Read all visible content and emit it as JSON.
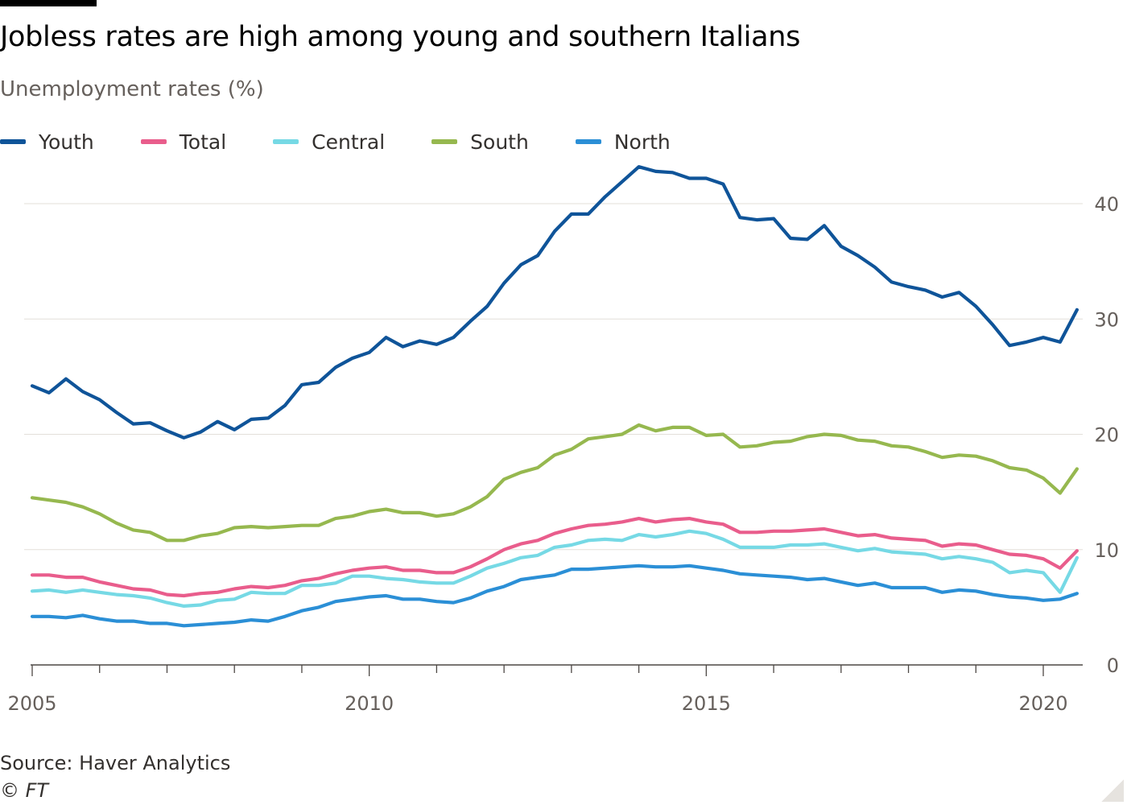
{
  "title": "Jobless rates are high among young and southern Italians",
  "subtitle": "Unemployment rates (%)",
  "source": "Source: Haver Analytics",
  "credit": "© FT",
  "colors": {
    "Youth": "#0f5499",
    "Total": "#e95d8c",
    "Central": "#76d9e5",
    "South": "#96b84f",
    "North": "#2b8fd6",
    "grid": "#e3dfd9",
    "axis": "#66605c"
  },
  "legend": [
    {
      "label": "Youth",
      "color": "#0f5499"
    },
    {
      "label": "Total",
      "color": "#e95d8c"
    },
    {
      "label": "Central",
      "color": "#76d9e5"
    },
    {
      "label": "South",
      "color": "#96b84f"
    },
    {
      "label": "North",
      "color": "#2b8fd6"
    }
  ],
  "chart_data": {
    "type": "line",
    "title": "Jobless rates are high among young and southern Italians",
    "subtitle": "Unemployment rates (%)",
    "ylabel": "",
    "xlabel": "",
    "x_start_year": 2005,
    "x_frequency": "quarterly",
    "x": [
      "2005 Q1",
      "2005 Q2",
      "2005 Q3",
      "2005 Q4",
      "2006 Q1",
      "2006 Q2",
      "2006 Q3",
      "2006 Q4",
      "2007 Q1",
      "2007 Q2",
      "2007 Q3",
      "2007 Q4",
      "2008 Q1",
      "2008 Q2",
      "2008 Q3",
      "2008 Q4",
      "2009 Q1",
      "2009 Q2",
      "2009 Q3",
      "2009 Q4",
      "2010 Q1",
      "2010 Q2",
      "2010 Q3",
      "2010 Q4",
      "2011 Q1",
      "2011 Q2",
      "2011 Q3",
      "2011 Q4",
      "2012 Q1",
      "2012 Q2",
      "2012 Q3",
      "2012 Q4",
      "2013 Q1",
      "2013 Q2",
      "2013 Q3",
      "2013 Q4",
      "2014 Q1",
      "2014 Q2",
      "2014 Q3",
      "2014 Q4",
      "2015 Q1",
      "2015 Q2",
      "2015 Q3",
      "2015 Q4",
      "2016 Q1",
      "2016 Q2",
      "2016 Q3",
      "2016 Q4",
      "2017 Q1",
      "2017 Q2",
      "2017 Q3",
      "2017 Q4",
      "2018 Q1",
      "2018 Q2",
      "2018 Q3",
      "2018 Q4",
      "2019 Q1",
      "2019 Q2",
      "2019 Q3",
      "2019 Q4",
      "2020 Q1",
      "2020 Q2",
      "2020 Q3"
    ],
    "xticks": [
      "2005",
      "2010",
      "2015",
      "2020"
    ],
    "yticks": [
      0,
      10,
      20,
      30,
      40
    ],
    "xlim": [
      "2005 Q1",
      "2020 Q4"
    ],
    "ylim": [
      0,
      44
    ],
    "y_axis_position": "right",
    "grid": true,
    "legend_position": "top-left",
    "series": [
      {
        "name": "Youth",
        "color": "#0f5499",
        "values": [
          24.2,
          23.6,
          24.8,
          23.7,
          23.0,
          21.9,
          20.9,
          21.0,
          20.3,
          19.7,
          20.2,
          21.1,
          20.4,
          21.3,
          21.4,
          22.5,
          24.3,
          24.5,
          25.8,
          26.6,
          27.1,
          28.4,
          27.6,
          28.1,
          27.8,
          28.4,
          29.8,
          31.1,
          33.1,
          34.7,
          35.5,
          37.6,
          39.1,
          39.1,
          40.6,
          41.9,
          43.2,
          42.8,
          42.7,
          42.2,
          42.2,
          41.7,
          38.8,
          38.6,
          38.7,
          37.0,
          36.9,
          38.1,
          36.3,
          35.5,
          34.5,
          33.2,
          32.8,
          32.5,
          31.9,
          32.3,
          31.1,
          29.5,
          27.7,
          28.0,
          28.4,
          28.0,
          30.8
        ]
      },
      {
        "name": "Total",
        "color": "#e95d8c",
        "values": [
          7.8,
          7.8,
          7.6,
          7.6,
          7.2,
          6.9,
          6.6,
          6.5,
          6.1,
          6.0,
          6.2,
          6.3,
          6.6,
          6.8,
          6.7,
          6.9,
          7.3,
          7.5,
          7.9,
          8.2,
          8.4,
          8.5,
          8.2,
          8.2,
          8.0,
          8.0,
          8.5,
          9.2,
          10.0,
          10.5,
          10.8,
          11.4,
          11.8,
          12.1,
          12.2,
          12.4,
          12.7,
          12.4,
          12.6,
          12.7,
          12.4,
          12.2,
          11.5,
          11.5,
          11.6,
          11.6,
          11.7,
          11.8,
          11.5,
          11.2,
          11.3,
          11.0,
          10.9,
          10.8,
          10.3,
          10.5,
          10.4,
          10.0,
          9.6,
          9.5,
          9.2,
          8.4,
          9.9
        ]
      },
      {
        "name": "Central",
        "color": "#76d9e5",
        "values": [
          6.4,
          6.5,
          6.3,
          6.5,
          6.3,
          6.1,
          6.0,
          5.8,
          5.4,
          5.1,
          5.2,
          5.6,
          5.7,
          6.3,
          6.2,
          6.2,
          6.9,
          6.9,
          7.1,
          7.7,
          7.7,
          7.5,
          7.4,
          7.2,
          7.1,
          7.1,
          7.7,
          8.4,
          8.8,
          9.3,
          9.5,
          10.2,
          10.4,
          10.8,
          10.9,
          10.8,
          11.3,
          11.1,
          11.3,
          11.6,
          11.4,
          10.9,
          10.2,
          10.2,
          10.2,
          10.4,
          10.4,
          10.5,
          10.2,
          9.9,
          10.1,
          9.8,
          9.7,
          9.6,
          9.2,
          9.4,
          9.2,
          8.9,
          8.0,
          8.2,
          8.0,
          6.3,
          9.3
        ]
      },
      {
        "name": "South",
        "color": "#96b84f",
        "values": [
          14.5,
          14.3,
          14.1,
          13.7,
          13.1,
          12.3,
          11.7,
          11.5,
          10.8,
          10.8,
          11.2,
          11.4,
          11.9,
          12.0,
          11.9,
          12.0,
          12.1,
          12.1,
          12.7,
          12.9,
          13.3,
          13.5,
          13.2,
          13.2,
          12.9,
          13.1,
          13.7,
          14.6,
          16.1,
          16.7,
          17.1,
          18.2,
          18.7,
          19.6,
          19.8,
          20.0,
          20.8,
          20.3,
          20.6,
          20.6,
          19.9,
          20.0,
          18.9,
          19.0,
          19.3,
          19.4,
          19.8,
          20.0,
          19.9,
          19.5,
          19.4,
          19.0,
          18.9,
          18.5,
          18.0,
          18.2,
          18.1,
          17.7,
          17.1,
          16.9,
          16.2,
          14.9,
          17.0
        ]
      },
      {
        "name": "North",
        "color": "#2b8fd6",
        "values": [
          4.2,
          4.2,
          4.1,
          4.3,
          4.0,
          3.8,
          3.8,
          3.6,
          3.6,
          3.4,
          3.5,
          3.6,
          3.7,
          3.9,
          3.8,
          4.2,
          4.7,
          5.0,
          5.5,
          5.7,
          5.9,
          6.0,
          5.7,
          5.7,
          5.5,
          5.4,
          5.8,
          6.4,
          6.8,
          7.4,
          7.6,
          7.8,
          8.3,
          8.3,
          8.4,
          8.5,
          8.6,
          8.5,
          8.5,
          8.6,
          8.4,
          8.2,
          7.9,
          7.8,
          7.7,
          7.6,
          7.4,
          7.5,
          7.2,
          6.9,
          7.1,
          6.7,
          6.7,
          6.7,
          6.3,
          6.5,
          6.4,
          6.1,
          5.9,
          5.8,
          5.6,
          5.7,
          6.2
        ]
      }
    ]
  }
}
